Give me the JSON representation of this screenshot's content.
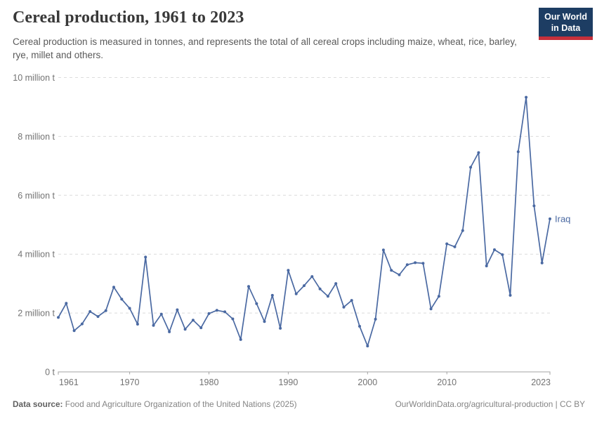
{
  "header": {
    "title": "Cereal production, 1961 to 2023",
    "subtitle": "Cereal production is measured in tonnes, and represents the total of all cereal crops including maize, wheat, rice, barley, rye, millet and others.",
    "logo_line1": "Our World",
    "logo_line2": "in Data"
  },
  "chart_data": {
    "type": "line",
    "title": "Cereal production, 1961 to 2023",
    "unit": "million tonnes",
    "xlim": [
      1961,
      2023
    ],
    "ylim": [
      0,
      10
    ],
    "grid": "horizontal-dashed",
    "legend_position": "end-of-line-label",
    "x_ticks": [
      1961,
      1970,
      1980,
      1990,
      2000,
      2010,
      2023
    ],
    "y_ticks": [
      {
        "v": 0,
        "label": "0 t"
      },
      {
        "v": 2,
        "label": "2 million t"
      },
      {
        "v": 4,
        "label": "4 million t"
      },
      {
        "v": 6,
        "label": "6 million t"
      },
      {
        "v": 8,
        "label": "8 million t"
      },
      {
        "v": 10,
        "label": "10 million t"
      }
    ],
    "x": [
      1961,
      1962,
      1963,
      1964,
      1965,
      1966,
      1967,
      1968,
      1969,
      1970,
      1971,
      1972,
      1973,
      1974,
      1975,
      1976,
      1977,
      1978,
      1979,
      1980,
      1981,
      1982,
      1983,
      1984,
      1985,
      1986,
      1987,
      1988,
      1989,
      1990,
      1991,
      1992,
      1993,
      1994,
      1995,
      1996,
      1997,
      1998,
      1999,
      2000,
      2001,
      2002,
      2003,
      2004,
      2005,
      2006,
      2007,
      2008,
      2009,
      2010,
      2011,
      2012,
      2013,
      2014,
      2015,
      2016,
      2017,
      2018,
      2019,
      2020,
      2021,
      2022,
      2023
    ],
    "series": [
      {
        "name": "Iraq",
        "end_label": "Iraq",
        "values_million_t": [
          1.85,
          2.33,
          1.4,
          1.63,
          2.05,
          1.88,
          2.08,
          2.88,
          2.47,
          2.16,
          1.62,
          3.9,
          1.58,
          1.96,
          1.36,
          2.11,
          1.45,
          1.76,
          1.5,
          1.98,
          2.09,
          2.04,
          1.8,
          1.1,
          2.9,
          2.32,
          1.71,
          2.6,
          1.48,
          3.45,
          2.65,
          2.93,
          3.24,
          2.82,
          2.57,
          3.0,
          2.2,
          2.43,
          1.55,
          0.88,
          1.79,
          4.14,
          3.45,
          3.3,
          3.64,
          3.71,
          3.69,
          2.14,
          2.57,
          4.35,
          4.25,
          4.8,
          6.95,
          7.45,
          3.6,
          4.15,
          3.98,
          2.6,
          7.48,
          9.33,
          5.64,
          3.7,
          5.2
        ]
      }
    ]
  },
  "colors": {
    "line": "#4a69a2",
    "grid": "#dcdcdc",
    "axis": "#a3a3a3",
    "tick_label": "#737373",
    "logo_bg": "#1d3d63",
    "logo_red": "#c5303b"
  },
  "footer": {
    "source_label": "Data source:",
    "source_text": "Food and Agriculture Organization of the United Nations (2025)",
    "url": "OurWorldinData.org/agricultural-production",
    "divider": "|",
    "license": "CC BY"
  }
}
